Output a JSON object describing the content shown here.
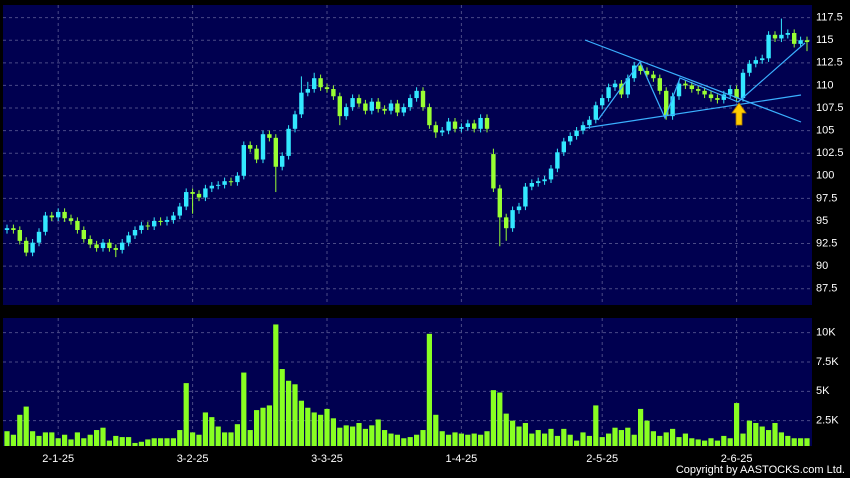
{
  "chart_data": [
    {
      "type": "candlestick",
      "up_color": "#33e8ff",
      "down_color": "#99ff33",
      "grid": true,
      "ylim": [
        85.7,
        118.9
      ],
      "yticks": [
        87.5,
        90,
        92.5,
        95,
        97.5,
        100,
        102.5,
        105,
        107.5,
        110,
        112.5,
        115,
        117.5
      ],
      "open": [
        94.0,
        94.2,
        94.0,
        92.8,
        91.5,
        92.6,
        93.8,
        95.6,
        95.4,
        96.0,
        95.3,
        95.0,
        94.0,
        93.0,
        92.4,
        92.0,
        92.6,
        92.0,
        91.8,
        92.6,
        93.4,
        94.0,
        94.5,
        94.4,
        95.0,
        94.9,
        95.1,
        95.6,
        96.6,
        98.2,
        98.0,
        97.6,
        98.6,
        98.9,
        99.0,
        99.4,
        99.3,
        100.0,
        103.4,
        103.0,
        101.8,
        104.6,
        104.2,
        101.0,
        102.2,
        105.2,
        106.8,
        109.2,
        109.6,
        110.8,
        109.8,
        109.6,
        108.8,
        106.6,
        107.6,
        108.6,
        108.0,
        107.2,
        108.2,
        107.4,
        107.2,
        108.0,
        107.0,
        107.6,
        108.6,
        109.4,
        107.6,
        105.6,
        104.8,
        105.0,
        106.0,
        105.2,
        105.4,
        105.8,
        105.2,
        106.4,
        102.4,
        98.6,
        95.4,
        94.2,
        96.2,
        96.6,
        98.8,
        99.2,
        99.4,
        99.6,
        100.8,
        102.6,
        103.8,
        104.4,
        105.0,
        105.6,
        106.2,
        107.8,
        108.6,
        109.8,
        110.2,
        109.0,
        110.8,
        112.2,
        111.6,
        111.2,
        110.8,
        109.4,
        106.6,
        108.8,
        110.2,
        110.0,
        109.6,
        109.4,
        109.0,
        108.6,
        108.4,
        109.0,
        109.6,
        108.6,
        111.4,
        112.4,
        112.8,
        113.0,
        115.6,
        115.2,
        115.6,
        115.8,
        114.6,
        115.0
      ],
      "high": [
        94.6,
        94.6,
        94.4,
        93.2,
        93.0,
        94.2,
        96.0,
        96.0,
        96.4,
        96.4,
        95.7,
        95.4,
        94.4,
        93.4,
        92.8,
        93.0,
        93.0,
        92.4,
        93.0,
        93.8,
        94.4,
        94.9,
        94.9,
        95.4,
        95.4,
        95.5,
        96.0,
        97.0,
        98.6,
        98.6,
        98.4,
        99.0,
        99.3,
        99.4,
        99.8,
        99.8,
        100.4,
        103.8,
        103.8,
        103.4,
        105.0,
        105.0,
        104.6,
        102.6,
        105.6,
        107.2,
        111.0,
        110.4,
        111.4,
        111.2,
        110.2,
        110.0,
        109.2,
        108.0,
        109.0,
        109.0,
        108.4,
        108.6,
        108.6,
        107.8,
        108.4,
        108.4,
        108.0,
        109.0,
        109.8,
        109.8,
        108.0,
        106.0,
        105.4,
        106.4,
        106.4,
        105.8,
        106.2,
        106.2,
        106.8,
        106.8,
        103.0,
        99.0,
        95.8,
        96.6,
        97.0,
        99.2,
        99.6,
        99.8,
        100.0,
        101.2,
        103.0,
        104.2,
        104.8,
        105.4,
        106.0,
        106.6,
        108.2,
        109.0,
        110.2,
        110.6,
        110.6,
        111.2,
        112.6,
        112.6,
        112.0,
        111.6,
        111.2,
        109.8,
        109.2,
        110.6,
        110.6,
        110.4,
        110.0,
        109.8,
        109.4,
        109.0,
        109.4,
        110.0,
        110.0,
        111.8,
        112.8,
        113.2,
        113.4,
        116.0,
        116.0,
        117.4,
        116.2,
        116.2,
        115.4,
        115.4
      ],
      "low": [
        93.6,
        93.6,
        92.4,
        91.1,
        91.1,
        92.2,
        93.4,
        95.0,
        95.0,
        94.9,
        94.6,
        93.6,
        92.6,
        92.0,
        91.6,
        91.6,
        91.6,
        91.0,
        91.4,
        92.2,
        93.0,
        93.6,
        94.0,
        94.0,
        94.5,
        94.5,
        94.7,
        95.2,
        96.2,
        95.8,
        97.2,
        97.2,
        98.2,
        98.5,
        98.6,
        98.9,
        98.9,
        99.6,
        102.6,
        101.4,
        101.4,
        103.8,
        98.2,
        100.6,
        101.8,
        104.8,
        106.4,
        108.8,
        109.2,
        109.4,
        109.2,
        108.4,
        105.6,
        106.2,
        107.2,
        107.6,
        106.8,
        106.8,
        107.0,
        106.8,
        106.8,
        106.6,
        106.6,
        107.2,
        108.2,
        107.2,
        105.2,
        104.2,
        104.4,
        104.6,
        104.8,
        104.8,
        105.0,
        104.8,
        104.8,
        104.8,
        98.2,
        92.2,
        92.8,
        93.8,
        95.8,
        96.2,
        98.4,
        98.8,
        99.0,
        99.2,
        100.4,
        102.2,
        103.4,
        104.0,
        104.6,
        105.2,
        105.8,
        107.4,
        108.2,
        109.4,
        108.6,
        108.6,
        110.4,
        111.2,
        110.8,
        110.4,
        109.0,
        106.2,
        106.2,
        108.4,
        109.6,
        109.2,
        109.0,
        108.6,
        108.2,
        108.0,
        108.0,
        108.6,
        108.2,
        108.2,
        111.0,
        112.0,
        112.4,
        112.6,
        114.8,
        114.8,
        115.2,
        114.2,
        114.2,
        113.8
      ],
      "close": [
        94.2,
        94.0,
        92.8,
        91.5,
        92.6,
        93.8,
        95.6,
        95.4,
        96.0,
        95.3,
        95.0,
        94.0,
        93.0,
        92.4,
        92.0,
        92.6,
        92.0,
        91.8,
        92.6,
        93.4,
        94.0,
        94.5,
        94.4,
        95.0,
        94.9,
        95.1,
        95.6,
        96.6,
        98.2,
        98.0,
        97.6,
        98.6,
        98.9,
        99.0,
        99.4,
        99.3,
        100.0,
        103.4,
        103.0,
        101.8,
        104.6,
        104.2,
        101.0,
        102.2,
        105.2,
        106.8,
        109.2,
        109.6,
        110.8,
        109.8,
        109.6,
        108.8,
        106.6,
        107.6,
        108.6,
        108.0,
        107.2,
        108.2,
        107.4,
        107.2,
        108.0,
        107.0,
        107.6,
        108.6,
        109.4,
        107.6,
        105.6,
        104.8,
        105.0,
        106.0,
        105.2,
        105.4,
        105.8,
        105.2,
        106.4,
        105.2,
        98.6,
        95.4,
        94.2,
        96.2,
        96.6,
        98.8,
        99.2,
        99.4,
        99.6,
        100.8,
        102.6,
        103.8,
        104.4,
        105.0,
        105.6,
        106.2,
        107.8,
        108.6,
        109.8,
        110.2,
        109.0,
        110.8,
        112.2,
        111.6,
        111.2,
        110.8,
        109.4,
        106.6,
        108.8,
        110.2,
        110.0,
        109.6,
        109.4,
        109.0,
        108.6,
        108.4,
        109.0,
        109.6,
        108.6,
        111.4,
        112.4,
        112.8,
        113.0,
        115.6,
        115.2,
        115.6,
        115.8,
        114.6,
        115.0,
        114.8
      ]
    },
    {
      "type": "bar",
      "color": "#88ff22",
      "grid": true,
      "ylim": [
        340,
        11250
      ],
      "yticks": [
        {
          "value": 2500,
          "label": "2.5K"
        },
        {
          "value": 5000,
          "label": "5K"
        },
        {
          "value": 7500,
          "label": "7.5K"
        },
        {
          "value": 10000,
          "label": "10K"
        }
      ],
      "categories": [
        null,
        null,
        null,
        null,
        null,
        null,
        null,
        null,
        "2-1-25",
        null,
        null,
        null,
        null,
        null,
        null,
        null,
        null,
        null,
        null,
        null,
        null,
        null,
        null,
        null,
        null,
        null,
        null,
        null,
        null,
        "3-2-25",
        null,
        null,
        null,
        null,
        null,
        null,
        null,
        null,
        null,
        null,
        null,
        null,
        null,
        null,
        null,
        null,
        null,
        null,
        null,
        null,
        "3-3-25",
        null,
        null,
        null,
        null,
        null,
        null,
        null,
        null,
        null,
        null,
        null,
        null,
        null,
        null,
        null,
        null,
        null,
        null,
        null,
        null,
        "1-4-25",
        null,
        null,
        null,
        null,
        null,
        null,
        null,
        null,
        null,
        null,
        null,
        null,
        null,
        null,
        null,
        null,
        null,
        null,
        null,
        null,
        null,
        "2-5-25",
        null,
        null,
        null,
        null,
        null,
        null,
        null,
        null,
        null,
        null,
        null,
        null,
        null,
        null,
        null,
        null,
        null,
        null,
        null,
        null,
        "2-6-25",
        null,
        null,
        null,
        null,
        null,
        null,
        null,
        null,
        null,
        null,
        null
      ],
      "values": [
        1600,
        1300,
        3000,
        3700,
        1600,
        1200,
        1500,
        1500,
        1000,
        1300,
        900,
        1500,
        1000,
        1300,
        1700,
        1900,
        800,
        1200,
        1100,
        1100,
        600,
        700,
        900,
        1000,
        1000,
        1000,
        1000,
        1700,
        5700,
        1500,
        1300,
        3200,
        2800,
        2000,
        1500,
        1500,
        2200,
        6600,
        1700,
        3400,
        3600,
        3800,
        10700,
        6900,
        5900,
        5600,
        4200,
        3600,
        3200,
        3000,
        3500,
        2700,
        1900,
        2100,
        2000,
        2300,
        1800,
        2100,
        2600,
        1700,
        1400,
        1300,
        1000,
        1100,
        1300,
        1700,
        9900,
        3000,
        1600,
        1300,
        1500,
        1400,
        1300,
        1400,
        1300,
        1600,
        5100,
        4900,
        3100,
        2500,
        2000,
        2300,
        1400,
        1700,
        1400,
        1800,
        1200,
        1800,
        1300,
        800,
        1500,
        1200,
        3800,
        1100,
        1400,
        1900,
        1700,
        1900,
        1300,
        3500,
        2500,
        1600,
        1200,
        1500,
        1800,
        1100,
        1400,
        1000,
        900,
        800,
        1000,
        800,
        1200,
        1000,
        4000,
        1400,
        2500,
        2300,
        2000,
        1700,
        2300,
        1500,
        1200,
        1000,
        1000,
        1000
      ]
    }
  ],
  "footer": "Copyright by AASTOCKS.com Ltd."
}
